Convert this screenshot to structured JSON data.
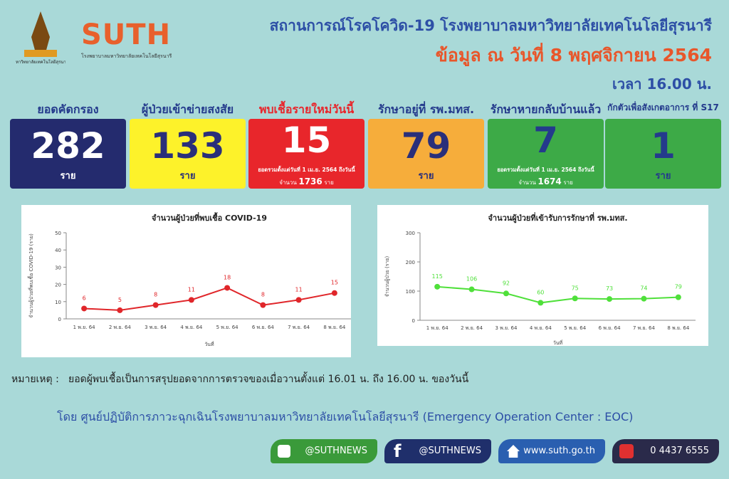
{
  "header": {
    "logo_left_caption": "มหาวิทยาลัยเทคโนโลยีสุรนารี",
    "logo_text": "SUTH",
    "logo_caption": "โรงพยาบาลมหาวิทยาลัยเทคโนโลยีสุรนารี",
    "title": "สถานการณ์โรคโควิด-19 โรงพยาบาลมหาวิทยาลัยเทคโนโลยีสุรนารี",
    "date": "ข้อมูล ณ วันที่ 8 พฤศจิกายน 2564",
    "time": "เวลา 16.00 น."
  },
  "stats": [
    {
      "label": "ยอดคัดกรอง",
      "value": 282,
      "unit": "ราย"
    },
    {
      "label": "ผู้ป่วยเข้าข่ายสงสัย",
      "value": 133,
      "unit": "ราย"
    },
    {
      "label": "พบเชื้อรายใหม่วันนี้",
      "value": 15,
      "note": "ยอดรวมตั้งแต่วันที่ 1 เม.ย. 2564 ถึงวันนี้",
      "total_label": "จำนวน",
      "total": 1736,
      "unit": "ราย"
    },
    {
      "label": "รักษาอยู่ที่ รพ.มทส.",
      "value": 79,
      "unit": "ราย"
    },
    {
      "label": "รักษาหายกลับบ้านแล้ว",
      "value": 7,
      "note": "ยอดรวมตั้งแต่วันที่ 1 เม.ย. 2564 ถึงวันนี้",
      "total_label": "จำนวน",
      "total": 1674,
      "unit": "ราย"
    },
    {
      "label": "กักตัวเพื่อสังเกตอาการ ที่ S17",
      "value": 1,
      "unit": "ราย"
    }
  ],
  "chart_data": [
    {
      "type": "line",
      "title": "จำนวนผู้ป่วยที่พบเชื้อ COVID-19",
      "y_label": "จำนวนผู้ป่วยที่พบเชื้อ COVID-19 (ราย)",
      "x_label": "วันที่",
      "categories": [
        "1 พ.ย. 64",
        "2 พ.ย. 64",
        "3 พ.ย. 64",
        "4 พ.ย. 64",
        "5 พ.ย. 64",
        "6 พ.ย. 64",
        "7 พ.ย. 64",
        "8 พ.ย. 64"
      ],
      "values": [
        6,
        5,
        8,
        11,
        18,
        8,
        11,
        15
      ],
      "color": "#e0262a",
      "ylim": [
        0,
        50
      ],
      "yticks": [
        0,
        10,
        20,
        30,
        40,
        50
      ]
    },
    {
      "type": "line",
      "title": "จำนวนผู้ป่วยที่เข้ารับการรักษาที่ รพ.มทส.",
      "y_label": "จำนวนผู้ป่วย (ราย)",
      "x_label": "วันที่",
      "categories": [
        "1 พ.ย. 64",
        "2 พ.ย. 64",
        "3 พ.ย. 64",
        "4 พ.ย. 64",
        "5 พ.ย. 64",
        "6 พ.ย. 64",
        "7 พ.ย. 64",
        "8 พ.ย. 64"
      ],
      "values": [
        115,
        106,
        92,
        60,
        75,
        73,
        74,
        79
      ],
      "color": "#4fe03a",
      "ylim": [
        0,
        300
      ],
      "yticks": [
        0,
        100,
        200,
        300
      ]
    }
  ],
  "footer": {
    "note_label": "หมายเหตุ :",
    "note": "ยอดผู้พบเชื้อเป็นการสรุปยอดจากการตรวจของเมื่อวานตั้งแต่ 16.01 น. ถึง 16.00 น. ของวันนี้",
    "by": "โดย ศูนย์ปฏิบัติการภาวะฉุกเฉินโรงพยาบาลมหาวิทยาลัยเทคโนโลยีสุรนารี (Emergency Operation  Center : EOC)",
    "contacts": [
      "@SUTHNEWS",
      "@SUTHNEWS",
      "www.suth.go.th",
      "0 4437 6555"
    ]
  }
}
